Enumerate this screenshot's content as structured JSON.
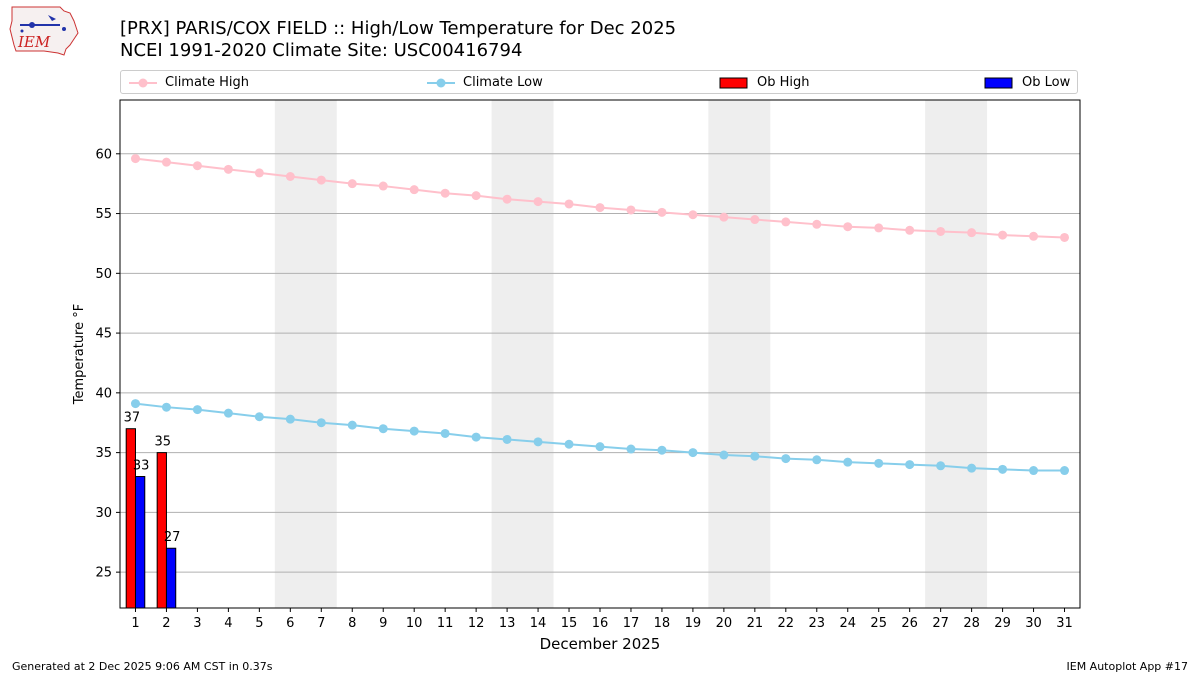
{
  "header": {
    "title_line1": "[PRX] PARIS/COX FIELD :: High/Low Temperature for Dec 2025",
    "title_line2": "NCEI 1991-2020 Climate Site: USC00416794",
    "logo_text": "IEM"
  },
  "legend": {
    "climate_high": "Climate High",
    "climate_low": "Climate Low",
    "ob_high": "Ob High",
    "ob_low": "Ob Low"
  },
  "colors": {
    "climate_high": "#ffc0cb",
    "climate_low": "#87ceeb",
    "ob_high": "#ff0000",
    "ob_low": "#0000ff",
    "weekend_shade": "#eeeeee",
    "grid": "#b0b0b0"
  },
  "chart_data": {
    "type": "bar",
    "title": "[PRX] PARIS/COX FIELD :: High/Low Temperature for Dec 2025",
    "subtitle": "NCEI 1991-2020 Climate Site: USC00416794",
    "xlabel": "December 2025",
    "ylabel": "Temperature °F",
    "xlim": [
      0.5,
      31.5
    ],
    "ylim": [
      22,
      64.5
    ],
    "yticks": [
      25,
      30,
      35,
      40,
      45,
      50,
      55,
      60
    ],
    "grid": true,
    "legend_position": "top",
    "days": [
      1,
      2,
      3,
      4,
      5,
      6,
      7,
      8,
      9,
      10,
      11,
      12,
      13,
      14,
      15,
      16,
      17,
      18,
      19,
      20,
      21,
      22,
      23,
      24,
      25,
      26,
      27,
      28,
      29,
      30,
      31
    ],
    "weekend_spans": [
      [
        6,
        7
      ],
      [
        13,
        14
      ],
      [
        20,
        21
      ],
      [
        27,
        28
      ]
    ],
    "series": [
      {
        "name": "Climate High",
        "kind": "line",
        "values": [
          59.6,
          59.3,
          59.0,
          58.7,
          58.4,
          58.1,
          57.8,
          57.5,
          57.3,
          57.0,
          56.7,
          56.5,
          56.2,
          56.0,
          55.8,
          55.5,
          55.3,
          55.1,
          54.9,
          54.7,
          54.5,
          54.3,
          54.1,
          53.9,
          53.8,
          53.6,
          53.5,
          53.4,
          53.2,
          53.1,
          53.0
        ]
      },
      {
        "name": "Climate Low",
        "kind": "line",
        "values": [
          39.1,
          38.8,
          38.6,
          38.3,
          38.0,
          37.8,
          37.5,
          37.3,
          37.0,
          36.8,
          36.6,
          36.3,
          36.1,
          35.9,
          35.7,
          35.5,
          35.3,
          35.2,
          35.0,
          34.8,
          34.7,
          34.5,
          34.4,
          34.2,
          34.1,
          34.0,
          33.9,
          33.7,
          33.6,
          33.5,
          33.5
        ]
      },
      {
        "name": "Ob High",
        "kind": "bar",
        "days": [
          1,
          2
        ],
        "values": [
          37,
          35
        ],
        "labels": [
          "37",
          "35"
        ]
      },
      {
        "name": "Ob Low",
        "kind": "bar",
        "days": [
          1,
          2
        ],
        "values": [
          33,
          27
        ],
        "labels": [
          "33",
          "27"
        ]
      }
    ]
  },
  "footer": {
    "generated": "Generated at 2 Dec 2025 9:06 AM CST in 0.37s",
    "app": "IEM Autoplot App #17"
  }
}
